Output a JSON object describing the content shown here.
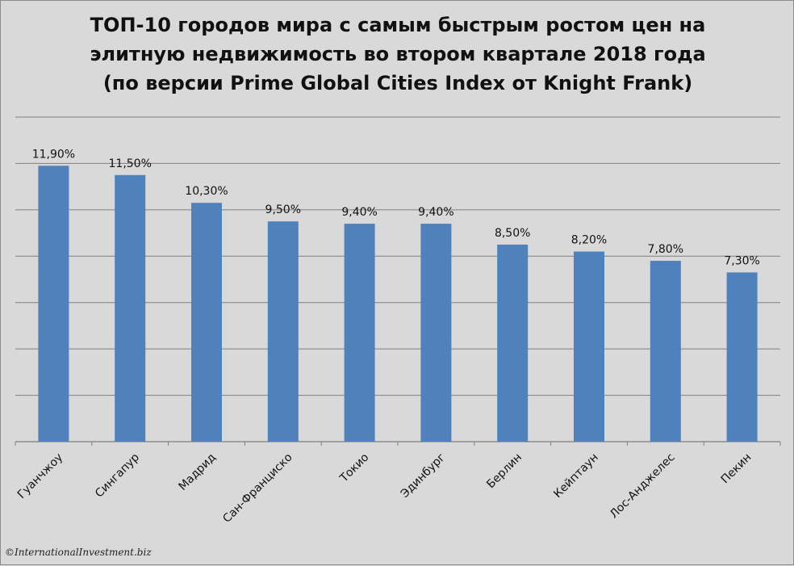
{
  "chart_data": {
    "type": "bar",
    "title": [
      "ТОП-10 городов мира с самым быстрым ростом цен на",
      "элитную недвижимость во втором квартале 2018 года",
      "(по версии Prime Global Cities Index от Knight Frank)"
    ],
    "categories": [
      "Гуанчжоу",
      "Сингапур",
      "Мадрид",
      "Сан-Франциско",
      "Токио",
      "Эдинбург",
      "Берлин",
      "Кейптаун",
      "Лос-Анджелес",
      "Пекин"
    ],
    "values": [
      11.9,
      11.5,
      10.3,
      9.5,
      9.4,
      9.4,
      8.5,
      8.2,
      7.8,
      7.3
    ],
    "labels": [
      "11,90%",
      "11,50%",
      "10,30%",
      "9,50%",
      "9,40%",
      "9,40%",
      "8,50%",
      "8,20%",
      "7,80%",
      "7,30%"
    ],
    "ylim": [
      0,
      14
    ],
    "grid_step": 2,
    "grid": true,
    "xlabel": "",
    "ylabel": "",
    "legend": "none",
    "colors": {
      "bar": "#4f81bd",
      "grid": "#7f7f7f",
      "background": "#d9d9d9",
      "text": "#111111"
    }
  },
  "credit": "©InternationalInvestment.biz"
}
